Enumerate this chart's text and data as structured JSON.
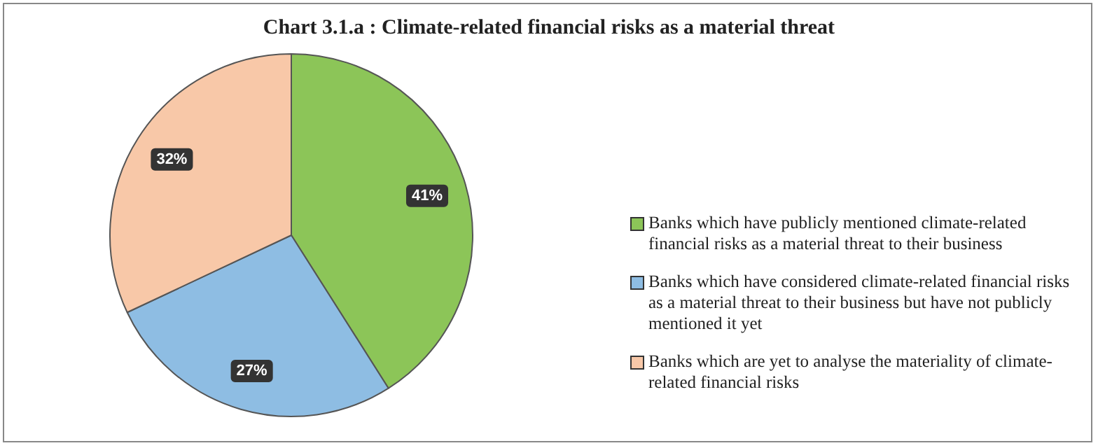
{
  "chart_data": {
    "type": "pie",
    "title": "Chart 3.1.a : Climate-related financial risks as a material threat",
    "categories": [
      "Banks which have publicly mentioned climate-related financial risks as a material threat to their business",
      "Banks which have considered climate-related financial risks as a  material threat to their business but have not publicly mentioned it  yet",
      "Banks which are yet to analyse the materiality of climate-related  financial risks"
    ],
    "values": [
      41,
      27,
      32
    ],
    "colors": [
      "#8cc558",
      "#8ebde3",
      "#f8c8a8"
    ],
    "value_labels": [
      "41%",
      "27%",
      "32%"
    ],
    "legend": "right"
  }
}
